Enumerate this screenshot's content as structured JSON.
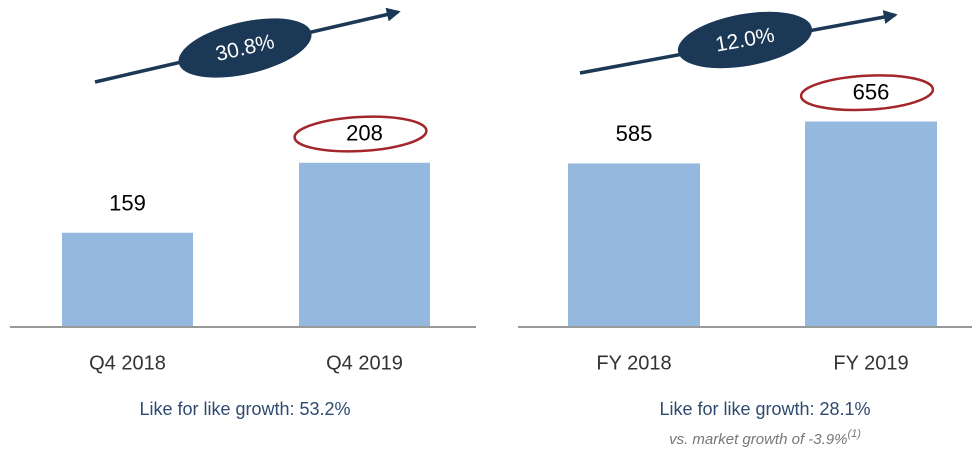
{
  "chart_data": [
    {
      "type": "bar",
      "categories": [
        "Q4 2018",
        "Q4 2019"
      ],
      "values": [
        159,
        208
      ],
      "color": "#95b8df",
      "ylim": [
        93,
        294
      ],
      "growth": "30.8%",
      "caption": "Like for like growth: 53.2%"
    },
    {
      "type": "bar",
      "categories": [
        "FY 2018",
        "FY 2019"
      ],
      "values": [
        585,
        656
      ],
      "color": "#95b8df",
      "ylim": [
        308,
        794
      ],
      "growth": "12.0%",
      "caption": "Like for like growth: 28.1%",
      "note": "vs. market growth of -3.9%",
      "note_ref": "(1)"
    }
  ]
}
